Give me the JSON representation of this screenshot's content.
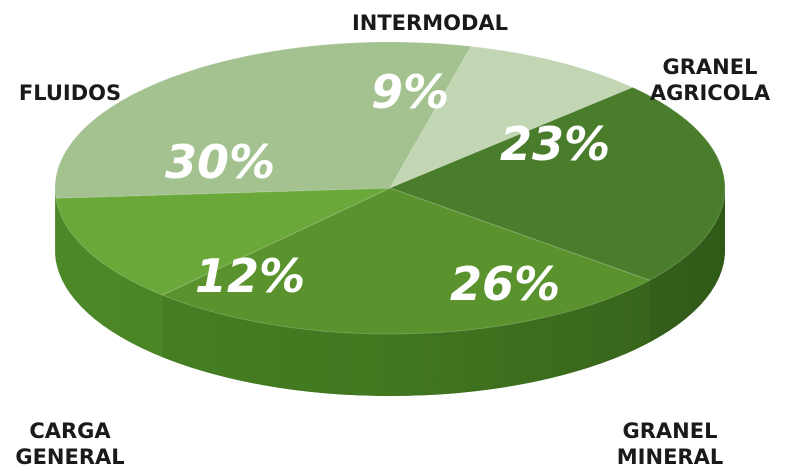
{
  "chart_data": {
    "type": "pie",
    "title": "",
    "slices": [
      {
        "label": "INTERMODAL",
        "value": 9,
        "value_label": "9%",
        "color": "#c3d6b4"
      },
      {
        "label": "GRANEL AGRICOLA",
        "value": 23,
        "value_label": "23%",
        "color": "#4a7d2b"
      },
      {
        "label": "GRANEL MINERAL",
        "value": 26,
        "value_label": "26%",
        "color": "#5a922e"
      },
      {
        "label": "CARGA GENERAL",
        "value": 12,
        "value_label": "12%",
        "color": "#6aa83a"
      },
      {
        "label": "FLUIDOS",
        "value": 30,
        "value_label": "30%",
        "color": "#a3c290"
      }
    ],
    "style": "3d-exploded-none",
    "legend": "none",
    "labels_position": "outside"
  }
}
